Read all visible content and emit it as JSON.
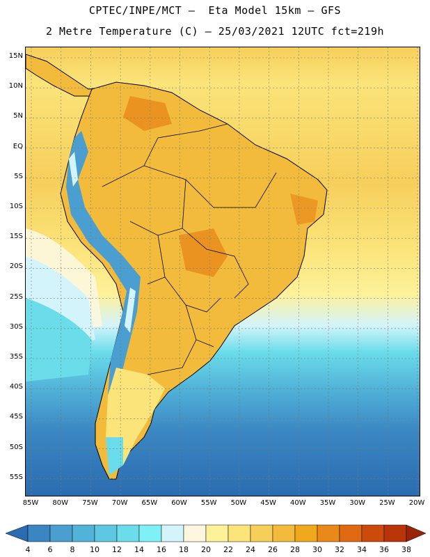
{
  "title_line1": "CPTEC/INPE/MCT –  Eta Model 15km – GFS",
  "title_line2": "2 Metre Temperature (C) – 25/03/2021 12UTC fct=219h",
  "lat_labels": [
    "15N",
    "10N",
    "5N",
    "EQ",
    "5S",
    "10S",
    "15S",
    "20S",
    "25S",
    "30S",
    "35S",
    "40S",
    "45S",
    "50S",
    "55S"
  ],
  "lon_labels": [
    "85W",
    "80W",
    "75W",
    "70W",
    "65W",
    "60W",
    "55W",
    "50W",
    "45W",
    "40W",
    "35W",
    "30W",
    "25W",
    "20W"
  ],
  "colorbar": {
    "values": [
      "4",
      "6",
      "8",
      "10",
      "12",
      "14",
      "16",
      "18",
      "20",
      "22",
      "24",
      "26",
      "28",
      "30",
      "32",
      "34",
      "36",
      "38"
    ],
    "colors": [
      "#2b6cb0",
      "#3a86c2",
      "#4a9fd0",
      "#52b3d9",
      "#5ec8e2",
      "#6adcea",
      "#7ff0f5",
      "#d4f4fb",
      "#fdf7df",
      "#fdf19a",
      "#fbe47a",
      "#f6cf5b",
      "#f2bb3c",
      "#f0a81c",
      "#e8891a",
      "#e06a12",
      "#cc4a0a",
      "#b8350a",
      "#9a2408"
    ]
  },
  "map": {
    "ocean_warm_color": "#f6cf5b",
    "ocean_cool_color": "#5ec8e2",
    "ocean_cold_color": "#2b6cb0",
    "land_color": "#f2bb3c",
    "andes_color": "#4a9fd0",
    "hot_color": "#e8891a"
  }
}
